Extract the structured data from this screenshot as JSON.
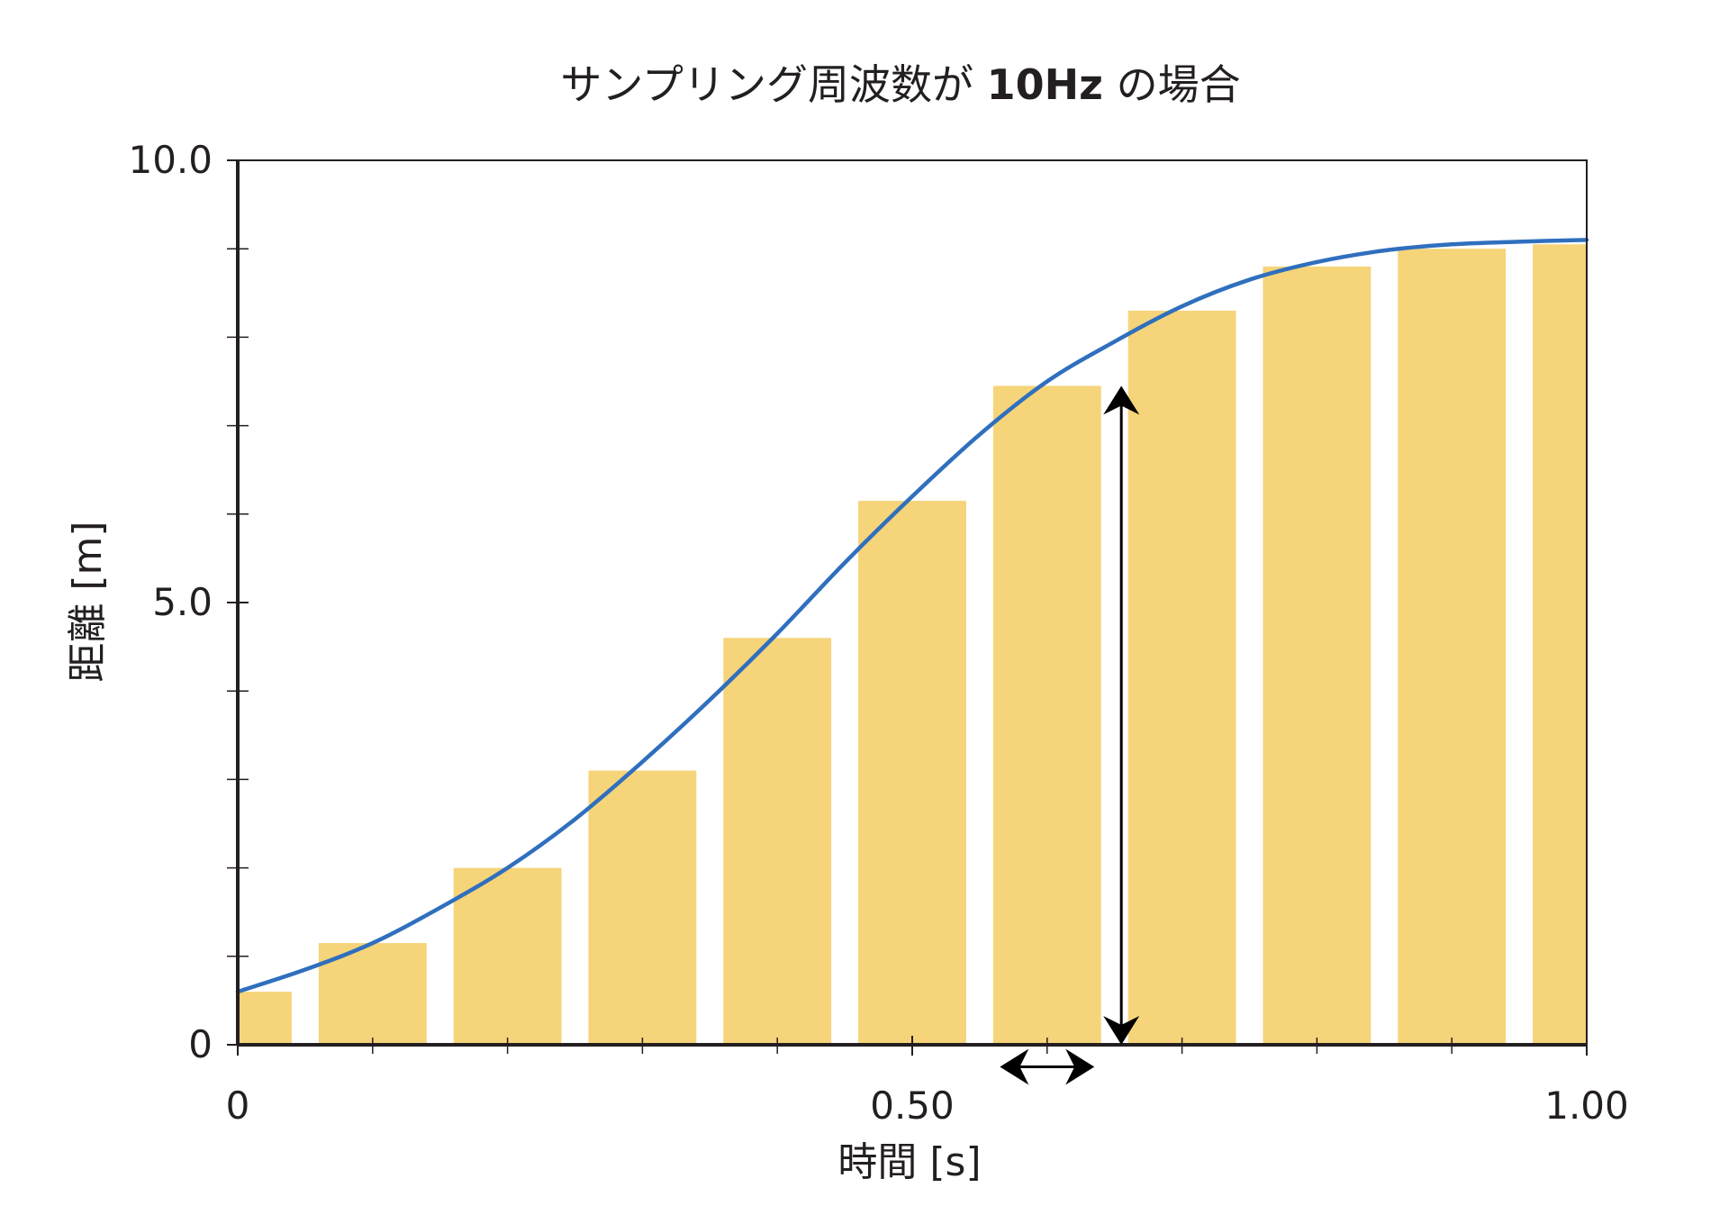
{
  "chart_data": {
    "type": "bar",
    "title_prefix": "サンプリング周波数が ",
    "title_bold": "10Hz",
    "title_suffix": " の場合",
    "xlabel": "時間 [s]",
    "ylabel": "距離 [m]",
    "xlim": [
      0,
      1.0
    ],
    "ylim": [
      0,
      10.0
    ],
    "x_tick_labels": [
      {
        "value": 0,
        "label": "0"
      },
      {
        "value": 0.5,
        "label": "0.50"
      },
      {
        "value": 1.0,
        "label": "1.00"
      }
    ],
    "y_tick_labels": [
      {
        "value": 0,
        "label": "0"
      },
      {
        "value": 5.0,
        "label": "5.0"
      },
      {
        "value": 10.0,
        "label": "10.0"
      }
    ],
    "x_minor_ticks": [
      0.1,
      0.2,
      0.3,
      0.4,
      0.6,
      0.7,
      0.8,
      0.9
    ],
    "y_minor_ticks": [
      1,
      2,
      3,
      4,
      6,
      7,
      8,
      9
    ],
    "bars": [
      {
        "x_start": 0.0,
        "x_end": 0.04,
        "value": 0.6
      },
      {
        "x_start": 0.06,
        "x_end": 0.14,
        "value": 1.15
      },
      {
        "x_start": 0.16,
        "x_end": 0.24,
        "value": 2.0
      },
      {
        "x_start": 0.26,
        "x_end": 0.34,
        "value": 3.1
      },
      {
        "x_start": 0.36,
        "x_end": 0.44,
        "value": 4.6
      },
      {
        "x_start": 0.46,
        "x_end": 0.54,
        "value": 6.15
      },
      {
        "x_start": 0.56,
        "x_end": 0.64,
        "value": 7.45
      },
      {
        "x_start": 0.66,
        "x_end": 0.74,
        "value": 8.3
      },
      {
        "x_start": 0.76,
        "x_end": 0.84,
        "value": 8.8
      },
      {
        "x_start": 0.86,
        "x_end": 0.94,
        "value": 9.0
      },
      {
        "x_start": 0.96,
        "x_end": 1.0,
        "value": 9.05
      }
    ],
    "curve": {
      "x": [
        0,
        0.05,
        0.1,
        0.15,
        0.2,
        0.25,
        0.3,
        0.35,
        0.4,
        0.45,
        0.5,
        0.55,
        0.6,
        0.65,
        0.7,
        0.75,
        0.8,
        0.85,
        0.9,
        0.95,
        1.0
      ],
      "y": [
        0.6,
        0.85,
        1.15,
        1.55,
        2.0,
        2.55,
        3.2,
        3.9,
        4.65,
        5.45,
        6.2,
        6.9,
        7.5,
        7.95,
        8.35,
        8.65,
        8.85,
        8.98,
        9.05,
        9.08,
        9.1
      ]
    },
    "vertical_arrow": {
      "x": 0.655,
      "y_from": 0.0,
      "y_to": 7.45
    },
    "horizontal_arrow": {
      "y": -0.25,
      "x_from": 0.565,
      "x_to": 0.635
    },
    "colors": {
      "bar": "#f5d47a",
      "curve": "#2f6fbe",
      "axis": "#231f20",
      "arrow": "#000000"
    }
  }
}
